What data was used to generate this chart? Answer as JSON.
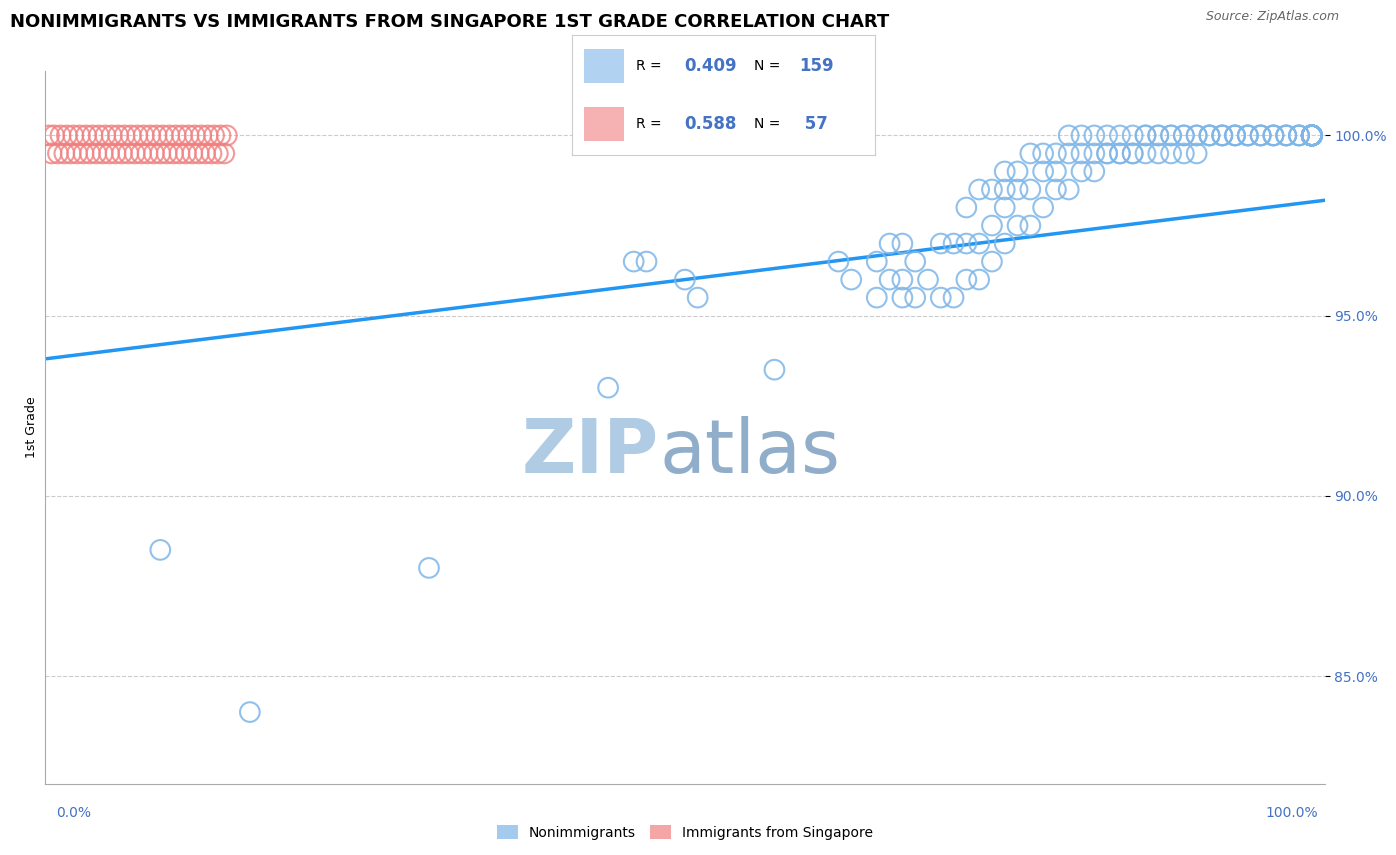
{
  "title": "NONIMMIGRANTS VS IMMIGRANTS FROM SINGAPORE 1ST GRADE CORRELATION CHART",
  "source": "Source: ZipAtlas.com",
  "ylabel": "1st Grade",
  "ytick_labels": [
    "85.0%",
    "90.0%",
    "95.0%",
    "100.0%"
  ],
  "ytick_values": [
    85.0,
    90.0,
    95.0,
    100.0
  ],
  "xmin": 0.0,
  "xmax": 100.0,
  "ymin": 82.0,
  "ymax": 101.8,
  "blue_color": "#7EB6E8",
  "pink_color": "#F08080",
  "trend_color": "#2196F3",
  "watermark_zip_color": "#B0CCE4",
  "watermark_atlas_color": "#90AECA",
  "legend_label1": "Nonimmigrants",
  "legend_label2": "Immigrants from Singapore",
  "legend_R1": "0.409",
  "legend_N1": "159",
  "legend_R2": "0.588",
  "legend_N2": " 57",
  "blue_scatter_x": [
    9,
    16,
    30,
    44,
    46,
    47,
    50,
    51,
    57,
    62,
    63,
    65,
    65,
    66,
    66,
    67,
    67,
    67,
    68,
    68,
    69,
    70,
    70,
    71,
    71,
    72,
    72,
    72,
    73,
    73,
    73,
    74,
    74,
    74,
    75,
    75,
    75,
    75,
    76,
    76,
    76,
    77,
    77,
    77,
    78,
    78,
    78,
    79,
    79,
    79,
    80,
    80,
    80,
    81,
    81,
    81,
    82,
    82,
    82,
    83,
    83,
    83,
    84,
    84,
    84,
    85,
    85,
    85,
    86,
    86,
    86,
    87,
    87,
    87,
    88,
    88,
    88,
    89,
    89,
    89,
    90,
    90,
    90,
    91,
    91,
    91,
    92,
    92,
    92,
    93,
    93,
    93,
    94,
    94,
    94,
    95,
    95,
    95,
    96,
    96,
    96,
    97,
    97,
    97,
    98,
    98,
    98,
    99,
    99,
    99,
    99,
    99,
    99,
    99,
    99,
    99,
    99,
    99,
    99,
    99,
    99,
    99,
    99,
    99,
    99,
    99,
    99,
    99,
    99,
    99,
    99,
    99,
    99,
    99,
    99,
    99,
    99,
    99,
    99,
    99,
    99,
    99,
    99,
    99,
    99,
    99,
    99,
    99,
    99,
    99,
    99,
    99,
    99,
    99,
    99,
    99,
    99,
    99
  ],
  "blue_scatter_y": [
    88.5,
    84.0,
    88.0,
    93.0,
    96.5,
    96.5,
    96.0,
    95.5,
    93.5,
    96.5,
    96.0,
    95.5,
    96.5,
    96.0,
    97.0,
    95.5,
    96.0,
    97.0,
    95.5,
    96.5,
    96.0,
    95.5,
    97.0,
    95.5,
    97.0,
    96.0,
    97.0,
    98.0,
    96.0,
    97.0,
    98.5,
    96.5,
    97.5,
    98.5,
    97.0,
    98.0,
    98.5,
    99.0,
    97.5,
    98.5,
    99.0,
    97.5,
    98.5,
    99.5,
    98.0,
    99.0,
    99.5,
    98.5,
    99.0,
    99.5,
    98.5,
    99.5,
    100.0,
    99.0,
    99.5,
    100.0,
    99.0,
    99.5,
    100.0,
    99.5,
    100.0,
    99.5,
    99.5,
    100.0,
    99.5,
    99.5,
    100.0,
    99.5,
    99.5,
    100.0,
    100.0,
    99.5,
    100.0,
    100.0,
    100.0,
    99.5,
    100.0,
    99.5,
    100.0,
    100.0,
    99.5,
    100.0,
    100.0,
    100.0,
    100.0,
    100.0,
    100.0,
    100.0,
    100.0,
    100.0,
    100.0,
    100.0,
    100.0,
    100.0,
    100.0,
    100.0,
    100.0,
    100.0,
    100.0,
    100.0,
    100.0,
    100.0,
    100.0,
    100.0,
    100.0,
    100.0,
    100.0,
    100.0,
    100.0,
    100.0,
    100.0,
    100.0,
    100.0,
    100.0,
    100.0,
    100.0,
    100.0,
    100.0,
    100.0,
    100.0,
    100.0,
    100.0,
    100.0,
    100.0,
    100.0,
    100.0,
    100.0,
    100.0,
    100.0,
    100.0,
    100.0,
    100.0,
    100.0,
    100.0,
    100.0,
    100.0,
    100.0,
    100.0,
    100.0,
    100.0,
    100.0,
    100.0,
    100.0,
    100.0,
    100.0,
    100.0,
    100.0,
    100.0,
    100.0,
    100.0,
    100.0,
    100.0,
    100.0,
    100.0,
    100.0,
    100.0,
    100.0,
    100.0
  ],
  "pink_scatter_x": [
    0.3,
    0.5,
    0.7,
    1.0,
    1.2,
    1.5,
    1.7,
    2.0,
    2.2,
    2.5,
    2.7,
    3.0,
    3.2,
    3.5,
    3.7,
    4.0,
    4.2,
    4.5,
    4.7,
    5.0,
    5.2,
    5.5,
    5.7,
    6.0,
    6.2,
    6.5,
    6.7,
    7.0,
    7.2,
    7.5,
    7.7,
    8.0,
    8.2,
    8.5,
    8.7,
    9.0,
    9.2,
    9.5,
    9.7,
    10.0,
    10.2,
    10.5,
    10.7,
    11.0,
    11.2,
    11.5,
    11.7,
    12.0,
    12.2,
    12.5,
    12.7,
    13.0,
    13.2,
    13.5,
    13.7,
    14.0,
    14.2
  ],
  "pink_scatter_y": [
    100.0,
    99.5,
    100.0,
    99.5,
    100.0,
    99.5,
    100.0,
    99.5,
    100.0,
    99.5,
    100.0,
    99.5,
    100.0,
    99.5,
    100.0,
    99.5,
    100.0,
    99.5,
    100.0,
    99.5,
    100.0,
    99.5,
    100.0,
    99.5,
    100.0,
    99.5,
    100.0,
    99.5,
    100.0,
    99.5,
    100.0,
    99.5,
    100.0,
    99.5,
    100.0,
    99.5,
    100.0,
    99.5,
    100.0,
    99.5,
    100.0,
    99.5,
    100.0,
    99.5,
    100.0,
    99.5,
    100.0,
    99.5,
    100.0,
    99.5,
    100.0,
    99.5,
    100.0,
    99.5,
    100.0,
    99.5,
    100.0
  ],
  "trend_x_start": 0.0,
  "trend_x_end": 100.0,
  "trend_y_start": 93.8,
  "trend_y_end": 98.2,
  "grid_color": "#CCCCCC",
  "background_color": "#FFFFFF",
  "title_fontsize": 13,
  "axis_label_fontsize": 9,
  "tick_fontsize": 10
}
